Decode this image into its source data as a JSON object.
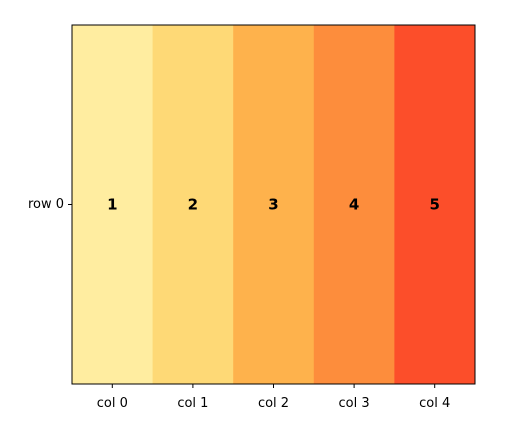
{
  "chart_data": {
    "type": "heatmap",
    "title": "",
    "xlabel": "",
    "ylabel": "",
    "rows": [
      "row 0"
    ],
    "columns": [
      "col 0",
      "col 1",
      "col 2",
      "col 3",
      "col 4"
    ],
    "values": [
      [
        1,
        2,
        3,
        4,
        5
      ]
    ],
    "value_labels": [
      [
        "1",
        "2",
        "3",
        "4",
        "5"
      ]
    ],
    "colors": [
      "#ffeda0",
      "#fed976",
      "#feb24c",
      "#fd8d3c",
      "#fc4e2a"
    ],
    "colorbar": false,
    "grid": false
  }
}
